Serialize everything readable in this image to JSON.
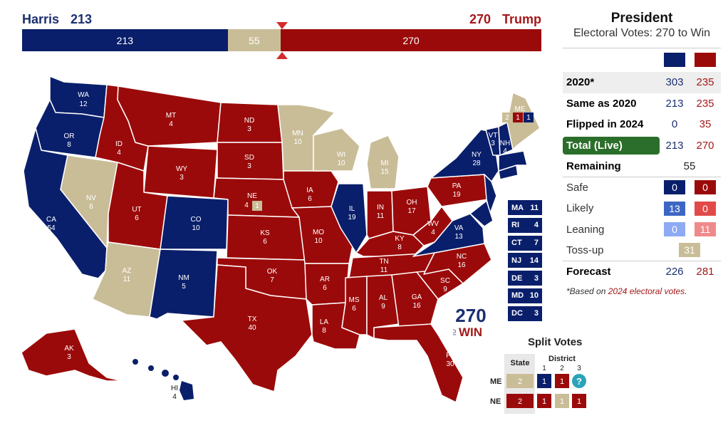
{
  "header": {
    "dem_name": "Harris",
    "dem_ev": "213",
    "rep_name": "Trump",
    "rep_ev": "270",
    "bar": {
      "dem": "213",
      "tossup": "55",
      "rep": "270"
    },
    "bar_fraction": {
      "dem": 0.396,
      "tossup": 0.102,
      "rep": 0.502
    }
  },
  "colors": {
    "dem": "#0a1f6b",
    "rep": "#9b0a0a",
    "tossup": "#c9bd98",
    "likely_dem": "#3d66c4",
    "likely_rep": "#e24a4a",
    "lean_dem": "#8eaaf3",
    "lean_rep": "#f08a8a",
    "dem_text": "#1b2f70",
    "rep_text": "#a51818",
    "total_green": "#2b6e2b"
  },
  "states": {
    "WA": {
      "abbr": "WA",
      "ev": "12"
    },
    "OR": {
      "abbr": "OR",
      "ev": "8"
    },
    "CA": {
      "abbr": "CA",
      "ev": "54"
    },
    "NV": {
      "abbr": "NV",
      "ev": "6"
    },
    "ID": {
      "abbr": "ID",
      "ev": "4"
    },
    "MT": {
      "abbr": "MT",
      "ev": "4"
    },
    "WY": {
      "abbr": "WY",
      "ev": "3"
    },
    "UT": {
      "abbr": "UT",
      "ev": "6"
    },
    "AZ": {
      "abbr": "AZ",
      "ev": "11"
    },
    "CO": {
      "abbr": "CO",
      "ev": "10"
    },
    "NM": {
      "abbr": "NM",
      "ev": "5"
    },
    "ND": {
      "abbr": "ND",
      "ev": "3"
    },
    "SD": {
      "abbr": "SD",
      "ev": "3"
    },
    "NE": {
      "abbr": "NE",
      "ev": "4"
    },
    "KS": {
      "abbr": "KS",
      "ev": "6"
    },
    "OK": {
      "abbr": "OK",
      "ev": "7"
    },
    "TX": {
      "abbr": "TX",
      "ev": "40"
    },
    "MN": {
      "abbr": "MN",
      "ev": "10"
    },
    "IA": {
      "abbr": "IA",
      "ev": "6"
    },
    "MO": {
      "abbr": "MO",
      "ev": "10"
    },
    "AR": {
      "abbr": "AR",
      "ev": "6"
    },
    "LA": {
      "abbr": "LA",
      "ev": "8"
    },
    "WI": {
      "abbr": "WI",
      "ev": "10"
    },
    "IL": {
      "abbr": "IL",
      "ev": "19"
    },
    "MI": {
      "abbr": "MI",
      "ev": "15"
    },
    "IN": {
      "abbr": "IN",
      "ev": "11"
    },
    "OH": {
      "abbr": "OH",
      "ev": "17"
    },
    "KY": {
      "abbr": "KY",
      "ev": "8"
    },
    "TN": {
      "abbr": "TN",
      "ev": "11"
    },
    "MS": {
      "abbr": "MS",
      "ev": "6"
    },
    "AL": {
      "abbr": "AL",
      "ev": "9"
    },
    "GA": {
      "abbr": "GA",
      "ev": "16"
    },
    "FL": {
      "abbr": "FL",
      "ev": "30"
    },
    "SC": {
      "abbr": "SC",
      "ev": "9"
    },
    "NC": {
      "abbr": "NC",
      "ev": "16"
    },
    "VA": {
      "abbr": "VA",
      "ev": "13"
    },
    "WV": {
      "abbr": "WV",
      "ev": "4"
    },
    "PA": {
      "abbr": "PA",
      "ev": "19"
    },
    "NY": {
      "abbr": "NY",
      "ev": "28"
    },
    "VT": {
      "abbr": "VT",
      "ev": "3"
    },
    "NH": {
      "abbr": "NH",
      "ev": "4"
    },
    "ME": {
      "abbr": "ME",
      "ev": "2"
    },
    "AK": {
      "abbr": "AK",
      "ev": "3"
    },
    "HI": {
      "abbr": "HI",
      "ev": "4"
    },
    "ME_districts": [
      "1",
      "1"
    ],
    "NE_district": "1"
  },
  "small_states": [
    {
      "abbr": "MA",
      "ev": "11"
    },
    {
      "abbr": "RI",
      "ev": "4"
    },
    {
      "abbr": "CT",
      "ev": "7"
    },
    {
      "abbr": "NJ",
      "ev": "14"
    },
    {
      "abbr": "DE",
      "ev": "3"
    },
    {
      "abbr": "MD",
      "ev": "10"
    },
    {
      "abbr": "DC",
      "ev": "3"
    }
  ],
  "logo": {
    "top": "270",
    "side": "TO",
    "win": "WIN"
  },
  "split_votes": {
    "title": "Split Votes",
    "state_header": "State",
    "district_header": "District",
    "district_numbers": [
      "1",
      "2",
      "3"
    ],
    "rows": [
      {
        "label": "ME",
        "state": "2",
        "d1": "1",
        "d2": "1",
        "d3": "?"
      },
      {
        "label": "NE",
        "state": "2",
        "d1": "1",
        "d2": "1",
        "d3": "1"
      }
    ]
  },
  "panel": {
    "title": "President",
    "subtitle": "Electoral Votes: 270 to Win",
    "rows": {
      "r2020": {
        "label": "2020*",
        "dem": "303",
        "rep": "235"
      },
      "same": {
        "label": "Same as 2020",
        "dem": "213",
        "rep": "235"
      },
      "flipped": {
        "label": "Flipped in 2024",
        "dem": "0",
        "rep": "35"
      },
      "total": {
        "label": "Total (Live)",
        "dem": "213",
        "rep": "270"
      },
      "remaining": {
        "label": "Remaining",
        "value": "55"
      },
      "safe": {
        "label": "Safe",
        "dem": "0",
        "rep": "0"
      },
      "likely": {
        "label": "Likely",
        "dem": "13",
        "rep": "0"
      },
      "leaning": {
        "label": "Leaning",
        "dem": "0",
        "rep": "11"
      },
      "tossup": {
        "label": "Toss-up",
        "value": "31"
      },
      "forecast": {
        "label": "Forecast",
        "dem": "226",
        "rep": "281"
      }
    },
    "footnote_pre": "*Based on ",
    "footnote_link": "2024 electoral votes",
    "footnote_post": "."
  }
}
